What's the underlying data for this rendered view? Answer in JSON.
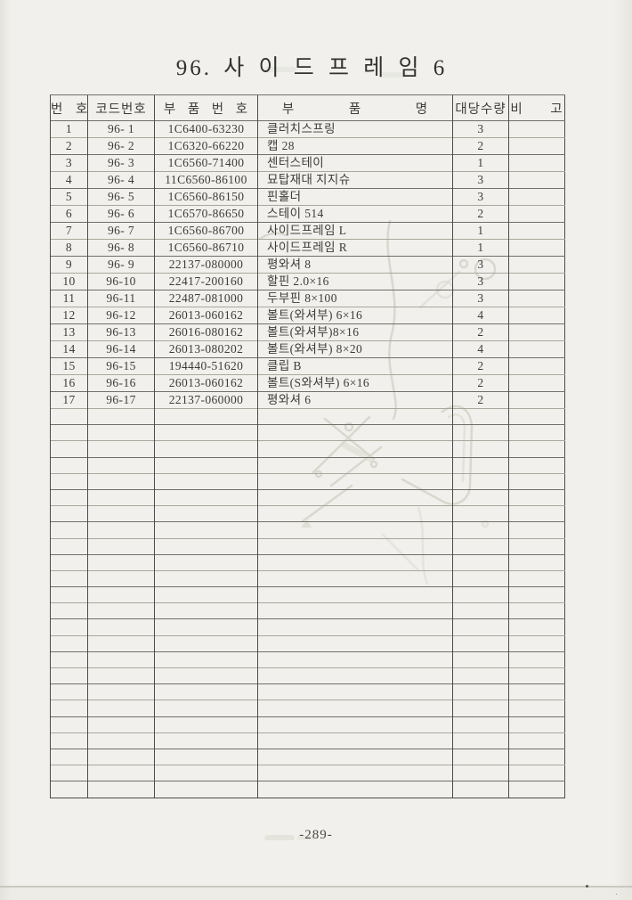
{
  "page": {
    "title": "96. 사 이 드 프 레 임 6",
    "page_number": "-289-"
  },
  "table": {
    "headers": [
      "번 호",
      "코드번호",
      "부 품 번 호",
      "부 품 명",
      "대당수량",
      "비 고"
    ],
    "rows": [
      {
        "no": "1",
        "code": "96- 1",
        "part_no": "1C6400-63230",
        "part_name": "클러치스프링",
        "qty": "3"
      },
      {
        "no": "2",
        "code": "96- 2",
        "part_no": "1C6320-66220",
        "part_name": "캡 28",
        "qty": "2"
      },
      {
        "no": "3",
        "code": "96- 3",
        "part_no": "1C6560-71400",
        "part_name": "센터스테이",
        "qty": "1"
      },
      {
        "no": "4",
        "code": "96- 4",
        "part_no": "11C6560-86100",
        "part_name": "묘탑재대 지지슈",
        "qty": "3"
      },
      {
        "no": "5",
        "code": "96- 5",
        "part_no": "1C6560-86150",
        "part_name": "핀홀더",
        "qty": "3"
      },
      {
        "no": "6",
        "code": "96- 6",
        "part_no": "1C6570-86650",
        "part_name": "스테이 514",
        "qty": "2"
      },
      {
        "no": "7",
        "code": "96- 7",
        "part_no": "1C6560-86700",
        "part_name": "사이드프레임 L",
        "qty": "1"
      },
      {
        "no": "8",
        "code": "96- 8",
        "part_no": "1C6560-86710",
        "part_name": "사이드프레임 R",
        "qty": "1"
      },
      {
        "no": "9",
        "code": "96- 9",
        "part_no": "22137-080000",
        "part_name": "평와셔 8",
        "qty": "3"
      },
      {
        "no": "10",
        "code": "96-10",
        "part_no": "22417-200160",
        "part_name": "할핀 2.0×16",
        "qty": "3"
      },
      {
        "no": "11",
        "code": "96-11",
        "part_no": "22487-081000",
        "part_name": "두부핀 8×100",
        "qty": "3"
      },
      {
        "no": "12",
        "code": "96-12",
        "part_no": "26013-060162",
        "part_name": "볼트(와셔부) 6×16",
        "qty": "4"
      },
      {
        "no": "13",
        "code": "96-13",
        "part_no": "26016-080162",
        "part_name": "볼트(와셔부)8×16",
        "qty": "2"
      },
      {
        "no": "14",
        "code": "96-14",
        "part_no": "26013-080202",
        "part_name": "볼트(와셔부) 8×20",
        "qty": "4"
      },
      {
        "no": "15",
        "code": "96-15",
        "part_no": "194440-51620",
        "part_name": "클립 B",
        "qty": "2"
      },
      {
        "no": "16",
        "code": "96-16",
        "part_no": "26013-060162",
        "part_name": "볼트(S와셔부) 6×16",
        "qty": "2"
      },
      {
        "no": "17",
        "code": "96-17",
        "part_no": "22137-060000",
        "part_name": "평와셔 6",
        "qty": "2"
      }
    ],
    "empty_row_count": 24
  },
  "colors": {
    "paper": "#f1f0ec",
    "ink": "#3e3c38",
    "title": "#343230",
    "line-v": "#4e4c48",
    "line-h": "#716f68",
    "line-h-light": "#aaa79c",
    "ghost": "#d2cfc4",
    "edge": "#e4e2dc",
    "bottomline": "#c2bfb3"
  }
}
